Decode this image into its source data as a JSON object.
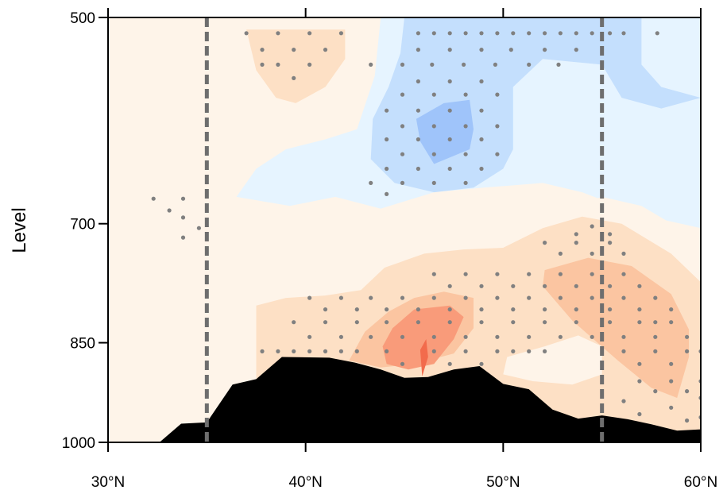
{
  "chart_data": {
    "type": "heatmap",
    "title": "",
    "xlabel": "",
    "ylabel": "Level",
    "x_ticks": [
      "30°N",
      "40°N",
      "50°N",
      "60°N"
    ],
    "x_tick_values": [
      30,
      40,
      50,
      60
    ],
    "y_ticks": [
      "500",
      "700",
      "850",
      "1000"
    ],
    "y_tick_values": [
      500,
      700,
      850,
      1000
    ],
    "xlim": [
      30,
      60
    ],
    "ylim": [
      500,
      1000
    ],
    "y_axis_inverted": true,
    "y_scale": "log-pressure",
    "reference_lines_lat": [
      35,
      55
    ],
    "colors": {
      "pos1": "#fef4e9",
      "pos2": "#fde0c5",
      "pos3": "#fbc5a1",
      "pos4": "#f99b7a",
      "pos5": "#f26b4c",
      "neg1": "#e6f4ff",
      "neg2": "#c4dffd",
      "neg3": "#9fc4fa",
      "terrain": "#000000",
      "stipple": "#808080",
      "refline": "#6e6e6e"
    },
    "terrain_profile": [
      {
        "lat": 30.0,
        "p": 1000
      },
      {
        "lat": 32.6,
        "p": 1000
      },
      {
        "lat": 33.7,
        "p": 970
      },
      {
        "lat": 35.0,
        "p": 968
      },
      {
        "lat": 36.3,
        "p": 910
      },
      {
        "lat": 37.5,
        "p": 902
      },
      {
        "lat": 38.8,
        "p": 870
      },
      {
        "lat": 41.2,
        "p": 871
      },
      {
        "lat": 42.5,
        "p": 878
      },
      {
        "lat": 43.8,
        "p": 888
      },
      {
        "lat": 45.0,
        "p": 900
      },
      {
        "lat": 46.2,
        "p": 899
      },
      {
        "lat": 47.5,
        "p": 888
      },
      {
        "lat": 48.8,
        "p": 883
      },
      {
        "lat": 50.0,
        "p": 909
      },
      {
        "lat": 51.3,
        "p": 917
      },
      {
        "lat": 52.5,
        "p": 948
      },
      {
        "lat": 53.8,
        "p": 962
      },
      {
        "lat": 55.0,
        "p": 957
      },
      {
        "lat": 56.3,
        "p": 963
      },
      {
        "lat": 57.5,
        "p": 971
      },
      {
        "lat": 58.8,
        "p": 981
      },
      {
        "lat": 60.0,
        "p": 979
      }
    ],
    "regions": [
      {
        "level": "pos2",
        "poly": [
          [
            37,
            510
          ],
          [
            40,
            510
          ],
          [
            42,
            510
          ],
          [
            42,
            535
          ],
          [
            41,
            560
          ],
          [
            39.5,
            575
          ],
          [
            38.5,
            570
          ],
          [
            37.5,
            545
          ]
        ]
      },
      {
        "level": "neg1",
        "poly": [
          [
            43.8,
            500
          ],
          [
            60,
            500
          ],
          [
            60,
            705
          ],
          [
            57,
            690
          ],
          [
            54,
            665
          ],
          [
            52,
            655
          ],
          [
            49,
            660
          ],
          [
            46.5,
            665
          ],
          [
            43.8,
            683
          ],
          [
            41.5,
            670
          ],
          [
            39.2,
            680
          ],
          [
            36.5,
            670
          ],
          [
            37.5,
            640
          ],
          [
            39,
            620
          ],
          [
            41,
            610
          ],
          [
            42.6,
            600
          ],
          [
            43.5,
            550
          ]
        ]
      },
      {
        "level": "neg2",
        "poly": [
          [
            45,
            500
          ],
          [
            57,
            500
          ],
          [
            57,
            540
          ],
          [
            58,
            560
          ],
          [
            60,
            570
          ],
          [
            60,
            500
          ],
          [
            60,
            500
          ],
          [
            60,
            570
          ],
          [
            58,
            580
          ],
          [
            56,
            570
          ],
          [
            55,
            540
          ],
          [
            52,
            535
          ],
          [
            50.5,
            560
          ],
          [
            50.5,
            620
          ],
          [
            50,
            640
          ],
          [
            48.5,
            660
          ],
          [
            46.5,
            665
          ],
          [
            44.5,
            655
          ],
          [
            43.3,
            630
          ],
          [
            43.4,
            590
          ],
          [
            44.2,
            560
          ],
          [
            44.8,
            530
          ]
        ]
      },
      {
        "level": "neg3",
        "poly": [
          [
            45.6,
            590
          ],
          [
            47,
            575
          ],
          [
            48.3,
            572
          ],
          [
            48.5,
            600
          ],
          [
            48.3,
            620
          ],
          [
            46.5,
            635
          ],
          [
            45.8,
            612
          ]
        ]
      },
      {
        "level": "pos1",
        "poly": [
          [
            37.5,
            770
          ],
          [
            39.5,
            760
          ],
          [
            42,
            752
          ],
          [
            44.5,
            735
          ],
          [
            47,
            722
          ],
          [
            50,
            712
          ],
          [
            52,
            690
          ],
          [
            55,
            670
          ],
          [
            57,
            680
          ],
          [
            60,
            720
          ],
          [
            60,
            1000
          ],
          [
            30,
            1000
          ],
          [
            30,
            770
          ]
        ]
      },
      {
        "level": "pos2",
        "poly": [
          [
            37.5,
            800
          ],
          [
            39,
            790
          ],
          [
            41,
            787
          ],
          [
            42.8,
            780
          ],
          [
            44,
            752
          ],
          [
            46,
            735
          ],
          [
            48,
            730
          ],
          [
            50,
            728
          ],
          [
            52,
            705
          ],
          [
            54,
            692
          ],
          [
            56,
            700
          ],
          [
            58.5,
            735
          ],
          [
            60,
            770
          ],
          [
            60,
            1000
          ],
          [
            37.5,
            1000
          ]
        ]
      },
      {
        "level": "pos3",
        "poly": [
          [
            42.2,
            875
          ],
          [
            43,
            835
          ],
          [
            44.2,
            808
          ],
          [
            45.5,
            790
          ],
          [
            47,
            782
          ],
          [
            48.5,
            790
          ],
          [
            48.5,
            830
          ],
          [
            47.5,
            865
          ],
          [
            45.5,
            880
          ],
          [
            43.8,
            885
          ]
        ]
      },
      {
        "level": "pos3",
        "poly": [
          [
            52.1,
            755
          ],
          [
            54.3,
            740
          ],
          [
            56.5,
            750
          ],
          [
            58.5,
            785
          ],
          [
            59.4,
            832
          ],
          [
            59.4,
            870
          ],
          [
            58.8,
            930
          ],
          [
            57.5,
            915
          ],
          [
            55.8,
            875
          ],
          [
            53.5,
            820
          ],
          [
            52,
            775
          ]
        ]
      },
      {
        "level": "pos4",
        "poly": [
          [
            43.9,
            855
          ],
          [
            44.4,
            830
          ],
          [
            45.5,
            805
          ],
          [
            47.3,
            800
          ],
          [
            48,
            815
          ],
          [
            47.5,
            845
          ],
          [
            46.5,
            880
          ],
          [
            45.2,
            888
          ],
          [
            44.1,
            880
          ]
        ]
      },
      {
        "level": "pos5",
        "poly": [
          [
            45.8,
            860
          ],
          [
            46.1,
            845
          ],
          [
            46.2,
            870
          ],
          [
            45.9,
            898
          ]
        ]
      },
      {
        "level": "pos1",
        "poly": [
          [
            50.2,
            870
          ],
          [
            52.1,
            855
          ],
          [
            53.8,
            840
          ],
          [
            55,
            855
          ],
          [
            55,
            895
          ],
          [
            53.5,
            910
          ],
          [
            51.5,
            905
          ],
          [
            50,
            895
          ]
        ]
      }
    ],
    "stipple_points": [
      [
        32.3,
        672
      ],
      [
        33.1,
        685
      ],
      [
        33.8,
        672
      ],
      [
        33.8,
        693
      ],
      [
        33.8,
        716
      ],
      [
        34.6,
        705
      ],
      [
        37,
        513
      ],
      [
        37.8,
        527
      ],
      [
        38.6,
        513
      ],
      [
        39.4,
        527
      ],
      [
        40.2,
        513
      ],
      [
        41,
        527
      ],
      [
        41.8,
        513
      ],
      [
        39.4,
        552
      ],
      [
        38.6,
        540
      ],
      [
        37.8,
        540
      ],
      [
        40.2,
        540
      ],
      [
        43.3,
        540
      ],
      [
        44.9,
        540
      ],
      [
        45.7,
        527
      ],
      [
        46.4,
        540
      ],
      [
        47.3,
        527
      ],
      [
        48,
        540
      ],
      [
        48.9,
        527
      ],
      [
        49.6,
        540
      ],
      [
        50.4,
        527
      ],
      [
        51.3,
        540
      ],
      [
        52.1,
        527
      ],
      [
        52.8,
        540
      ],
      [
        53.7,
        527
      ],
      [
        54.5,
        513
      ],
      [
        55.4,
        513
      ],
      [
        56.1,
        513
      ],
      [
        57.8,
        513
      ],
      [
        45.7,
        513
      ],
      [
        46.5,
        513
      ],
      [
        47.3,
        513
      ],
      [
        48.1,
        513
      ],
      [
        48.9,
        513
      ],
      [
        49.7,
        513
      ],
      [
        50.5,
        513
      ],
      [
        51.3,
        513
      ],
      [
        52.1,
        513
      ],
      [
        52.9,
        513
      ],
      [
        53.7,
        513
      ],
      [
        44.9,
        567
      ],
      [
        45.7,
        555
      ],
      [
        46.5,
        567
      ],
      [
        47.3,
        555
      ],
      [
        48.1,
        567
      ],
      [
        48.9,
        555
      ],
      [
        49.7,
        567
      ],
      [
        44.1,
        582
      ],
      [
        44.9,
        597
      ],
      [
        45.7,
        582
      ],
      [
        46.5,
        597
      ],
      [
        47.3,
        582
      ],
      [
        48.1,
        597
      ],
      [
        48.9,
        582
      ],
      [
        49.7,
        597
      ],
      [
        44.1,
        610
      ],
      [
        44.9,
        625
      ],
      [
        45.7,
        610
      ],
      [
        46.5,
        625
      ],
      [
        47.3,
        610
      ],
      [
        48.1,
        625
      ],
      [
        48.9,
        610
      ],
      [
        49.7,
        625
      ],
      [
        44.1,
        640
      ],
      [
        44.9,
        655
      ],
      [
        45.7,
        640
      ],
      [
        46.5,
        655
      ],
      [
        47.3,
        640
      ],
      [
        48.1,
        655
      ],
      [
        48.9,
        640
      ],
      [
        43.3,
        655
      ],
      [
        44.1,
        667
      ],
      [
        53.7,
        712
      ],
      [
        54.5,
        703
      ],
      [
        55.4,
        712
      ],
      [
        52.1,
        722
      ],
      [
        52.9,
        735
      ],
      [
        53.7,
        722
      ],
      [
        54.5,
        735
      ],
      [
        55.4,
        722
      ],
      [
        56.1,
        735
      ],
      [
        46.5,
        760
      ],
      [
        47.3,
        775
      ],
      [
        48.1,
        760
      ],
      [
        48.9,
        775
      ],
      [
        49.7,
        760
      ],
      [
        50.5,
        775
      ],
      [
        51.3,
        760
      ],
      [
        52.1,
        775
      ],
      [
        52.9,
        760
      ],
      [
        53.7,
        775
      ],
      [
        54.5,
        760
      ],
      [
        55.4,
        775
      ],
      [
        56.1,
        760
      ],
      [
        56.9,
        775
      ],
      [
        57.7,
        790
      ],
      [
        58.5,
        805
      ],
      [
        40.2,
        790
      ],
      [
        41,
        805
      ],
      [
        41.8,
        790
      ],
      [
        42.6,
        805
      ],
      [
        43.3,
        790
      ],
      [
        44.1,
        805
      ],
      [
        44.9,
        790
      ],
      [
        45.7,
        805
      ],
      [
        46.5,
        790
      ],
      [
        47.3,
        805
      ],
      [
        48.1,
        790
      ],
      [
        48.9,
        805
      ],
      [
        49.7,
        790
      ],
      [
        50.5,
        805
      ],
      [
        51.3,
        790
      ],
      [
        52.1,
        805
      ],
      [
        52.9,
        790
      ],
      [
        53.7,
        805
      ],
      [
        54.5,
        790
      ],
      [
        55.4,
        805
      ],
      [
        56.1,
        790
      ],
      [
        56.9,
        805
      ],
      [
        57.7,
        822
      ],
      [
        39.4,
        822
      ],
      [
        40.2,
        842
      ],
      [
        41,
        822
      ],
      [
        41.8,
        842
      ],
      [
        42.6,
        822
      ],
      [
        43.3,
        842
      ],
      [
        44.1,
        822
      ],
      [
        44.9,
        842
      ],
      [
        45.7,
        822
      ],
      [
        46.5,
        842
      ],
      [
        47.3,
        822
      ],
      [
        48.1,
        842
      ],
      [
        48.9,
        822
      ],
      [
        49.7,
        842
      ],
      [
        50.5,
        822
      ],
      [
        51.3,
        842
      ],
      [
        52.1,
        822
      ],
      [
        52.9,
        842
      ],
      [
        53.7,
        822
      ],
      [
        54.5,
        842
      ],
      [
        55.4,
        822
      ],
      [
        56.1,
        842
      ],
      [
        56.9,
        822
      ],
      [
        57.7,
        842
      ],
      [
        58.5,
        822
      ],
      [
        59.3,
        842
      ],
      [
        37.8,
        862
      ],
      [
        38.6,
        862
      ],
      [
        39.4,
        862
      ],
      [
        40.2,
        862
      ],
      [
        41,
        862
      ],
      [
        41.8,
        862
      ],
      [
        42.6,
        862
      ],
      [
        44.1,
        862
      ],
      [
        44.9,
        880
      ],
      [
        46.5,
        862
      ],
      [
        47.3,
        880
      ],
      [
        48.1,
        862
      ],
      [
        48.9,
        880
      ],
      [
        49.7,
        862
      ],
      [
        50.5,
        862
      ],
      [
        51.3,
        862
      ],
      [
        52.1,
        862
      ],
      [
        56.1,
        862
      ],
      [
        56.9,
        880
      ],
      [
        57.7,
        862
      ],
      [
        58.5,
        880
      ],
      [
        59.3,
        862
      ],
      [
        60,
        862
      ],
      [
        56.9,
        905
      ],
      [
        57.7,
        920
      ],
      [
        58.5,
        905
      ],
      [
        59.3,
        920
      ],
      [
        60,
        905
      ],
      [
        56.1,
        935
      ],
      [
        56.9,
        955
      ],
      [
        58.5,
        945
      ],
      [
        59.3,
        965
      ],
      [
        60,
        930
      ],
      [
        60,
        960
      ]
    ]
  }
}
